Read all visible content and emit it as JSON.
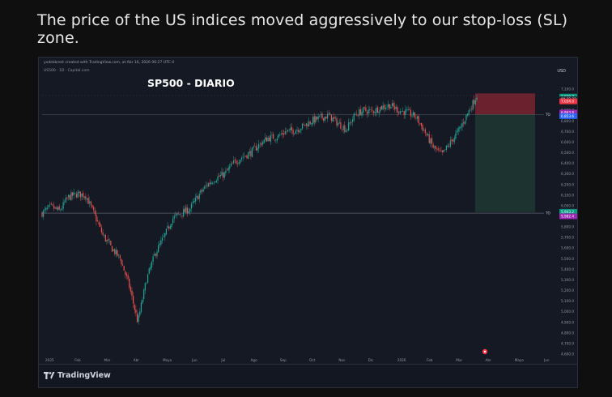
{
  "caption": "The price of the US indices moved aggressively to our stop-loss (SL) zone.",
  "tv_header": "yxdekbrest created with TradingView.com, at Abr 16, 2026 06:27 UTC-4",
  "symbol_line": "US500 · 1D · Capital.com",
  "currency": "USD",
  "footer_logo": "TradingView",
  "colors": {
    "up": "#26a69a",
    "down": "#ef5350",
    "sl_zone": "#7b2430",
    "tp_zone": "#1f3a32",
    "price_label_green": "#089981",
    "price_label_red": "#f23645",
    "price_label_purple": "#9c27b0"
  },
  "chart_data": {
    "type": "candlestick",
    "title": "SP500 - DIARIO",
    "ylim": [
      4600,
      7200
    ],
    "y_ticks": [
      "7,100.0",
      "7,000.0",
      "6,900.0",
      "6,800.0",
      "6,700.0",
      "6,600.0",
      "6,500.0",
      "6,400.0",
      "6,300.0",
      "6,200.0",
      "6,100.0",
      "6,000.0",
      "5,900.0",
      "5,800.0",
      "5,700.0",
      "5,600.0",
      "5,500.0",
      "5,400.0",
      "5,300.0",
      "5,200.0",
      "5,100.0",
      "5,000.0",
      "4,900.0",
      "4,800.0",
      "4,700.0",
      "4,600.0"
    ],
    "x_ticks": [
      "2025",
      "Feb",
      "Mar",
      "Abr",
      "Mayo",
      "Jun",
      "Jul",
      "Ago",
      "Sep",
      "Oct",
      "Nov",
      "Dic",
      "2026",
      "Feb",
      "Mar",
      "Abr",
      "Mayo",
      "Jun"
    ],
    "trend_closes": [
      5930,
      5990,
      5950,
      6080,
      6110,
      6100,
      5920,
      5720,
      5600,
      5500,
      5250,
      4900,
      5300,
      5550,
      5700,
      5880,
      5930,
      5970,
      6100,
      6200,
      6260,
      6300,
      6400,
      6460,
      6500,
      6580,
      6640,
      6650,
      6700,
      6710,
      6750,
      6800,
      6830,
      6850,
      6780,
      6720,
      6860,
      6900,
      6890,
      6930,
      6950,
      6900,
      6880,
      6840,
      6700,
      6550,
      6480,
      6600,
      6720,
      6880,
      7040
    ],
    "position": {
      "entry": 6860.6,
      "stop_loss": 7060.0,
      "take_profit": 5940.0,
      "support_level": 5930.0
    },
    "price_labels": [
      {
        "text": "7,029.7",
        "kind": "green"
      },
      {
        "text": "09:32:32",
        "kind": "dark"
      },
      {
        "text": "7,034.0",
        "kind": "red"
      },
      {
        "text": "6,863.8",
        "kind": "purple"
      },
      {
        "text": "6,853.6",
        "kind": "blue"
      },
      {
        "text": "5,943.2",
        "kind": "green"
      },
      {
        "text": "5,982.4",
        "kind": "purple"
      }
    ],
    "level_tags": [
      "TO",
      "TO"
    ],
    "legend": "none",
    "grid": false
  }
}
